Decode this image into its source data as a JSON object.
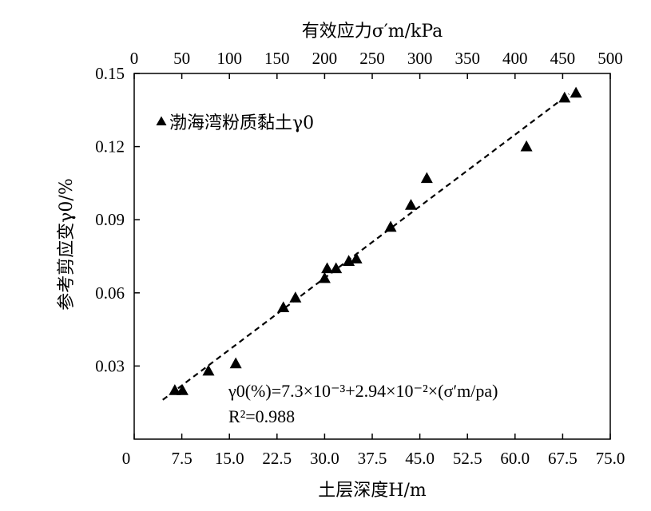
{
  "chart_data": {
    "type": "scatter",
    "title": "",
    "xlabel": "土层深度H/m",
    "x2label": "有效应力σ′m/kPa",
    "ylabel": "参考剪应变γ0/%",
    "xlim": [
      0,
      75
    ],
    "x2lim": [
      0,
      500
    ],
    "ylim": [
      0,
      0.15
    ],
    "x_ticks": [
      "0",
      "7.5",
      "15.0",
      "22.5",
      "30.0",
      "37.5",
      "45.0",
      "52.5",
      "60.0",
      "67.5",
      "75.0"
    ],
    "x2_ticks": [
      "0",
      "50",
      "100",
      "150",
      "200",
      "250",
      "300",
      "350",
      "400",
      "450",
      "500"
    ],
    "y_ticks": [
      "0.03",
      "0.06",
      "0.09",
      "0.12",
      "0.15"
    ],
    "grid": false,
    "legend": {
      "placement": "top-left",
      "label": "渤海湾粉质黏土γ0"
    },
    "series": [
      {
        "name": "渤海湾粉质黏土γ0",
        "marker": "triangle",
        "x": [
          6.4,
          7.6,
          11.7,
          16.0,
          23.5,
          25.4,
          30.0,
          30.4,
          31.8,
          33.8,
          35.0,
          40.4,
          43.6,
          46.1,
          61.8,
          67.8,
          69.6
        ],
        "y": [
          0.02,
          0.02,
          0.028,
          0.031,
          0.054,
          0.058,
          0.066,
          0.07,
          0.07,
          0.073,
          0.074,
          0.087,
          0.096,
          0.107,
          0.12,
          0.14,
          0.142
        ]
      }
    ],
    "fit": {
      "style": "dashed",
      "slope": 0.00196,
      "intercept": 0.0073,
      "x_range": [
        4.5,
        68.5
      ]
    },
    "annotations": {
      "equation": "γ0(%)=7.3×10⁻³+2.94×10⁻²×(σ′m/pa)",
      "r2": "R²=0.988"
    }
  },
  "colors": {
    "marker": "#000000",
    "line": "#000000",
    "axis": "#000000",
    "background": "#ffffff"
  }
}
